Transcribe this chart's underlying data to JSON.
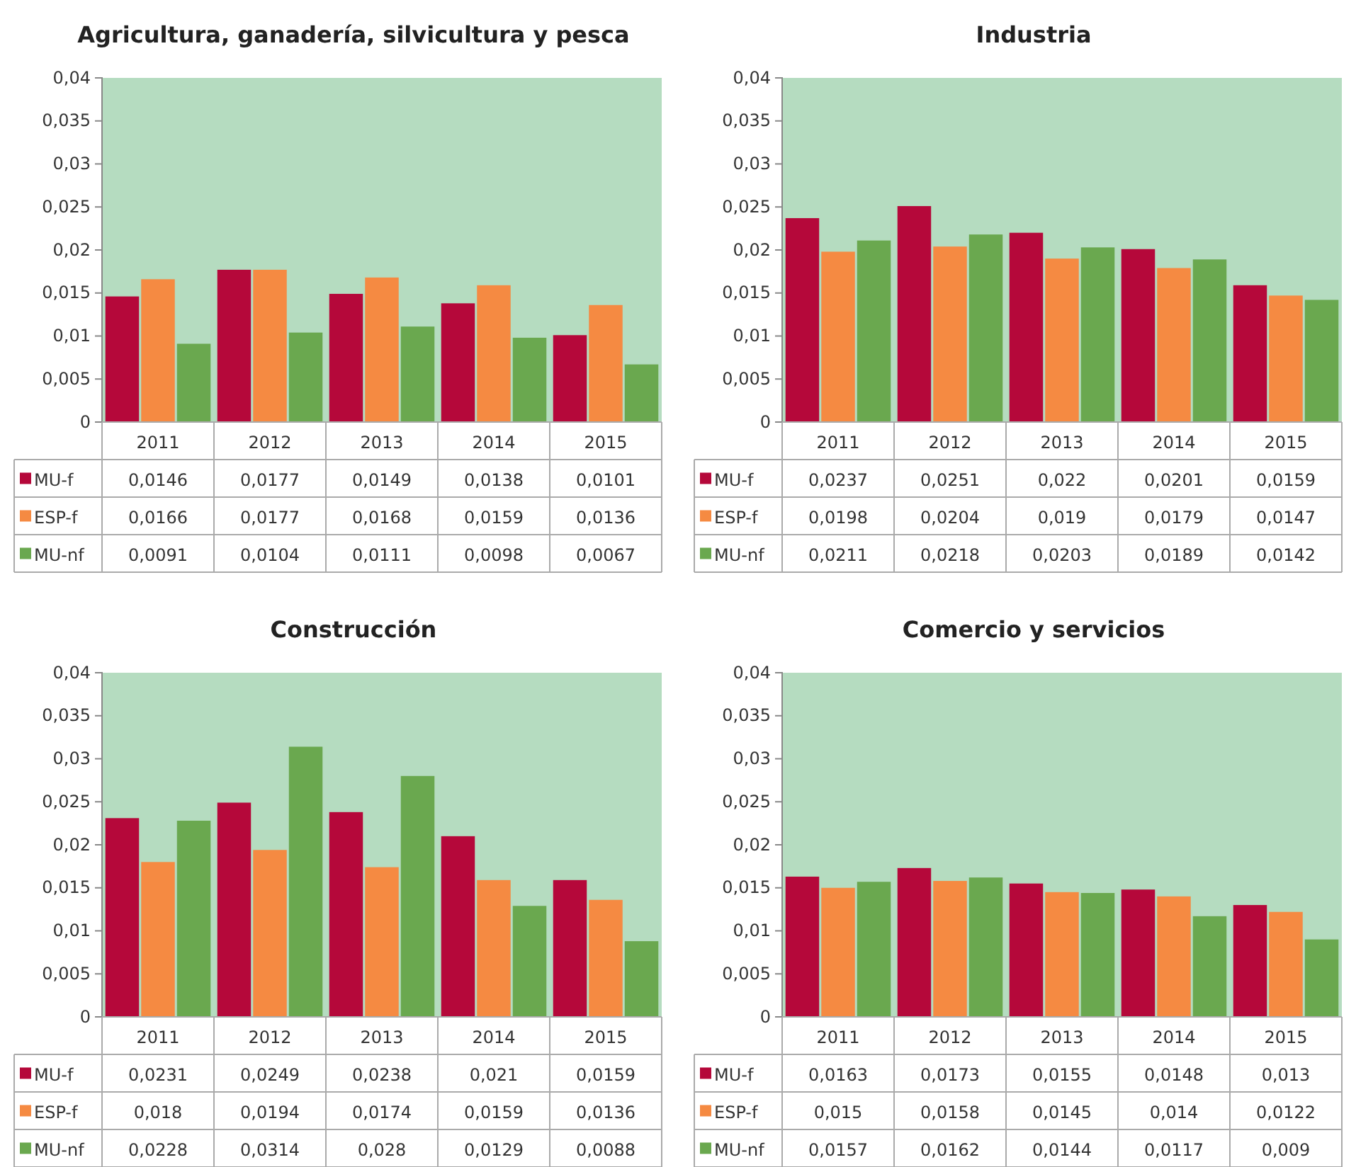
{
  "chart_data": [
    {
      "type": "bar",
      "title": "Agricultura, ganadería, silvicultura y pesca",
      "categories": [
        "2011",
        "2012",
        "2013",
        "2014",
        "2015"
      ],
      "ylim": [
        0,
        0.04
      ],
      "yticks": [
        {
          "value": 0,
          "label": "0"
        },
        {
          "value": 0.005,
          "label": "0,005"
        },
        {
          "value": 0.01,
          "label": "0,01"
        },
        {
          "value": 0.015,
          "label": "0,015"
        },
        {
          "value": 0.02,
          "label": "0,02"
        },
        {
          "value": 0.025,
          "label": "0,025"
        },
        {
          "value": 0.03,
          "label": "0,03"
        },
        {
          "value": 0.035,
          "label": "0,035"
        },
        {
          "value": 0.04,
          "label": "0,04"
        }
      ],
      "legend": "bottom",
      "series": [
        {
          "name": "MU-f",
          "color": "#b5083a",
          "values": [
            0.0146,
            0.0177,
            0.0149,
            0.0138,
            0.0101
          ],
          "value_labels": [
            "0,0146",
            "0,0177",
            "0,0149",
            "0,0138",
            "0,0101"
          ]
        },
        {
          "name": "ESP-f",
          "color": "#f58a42",
          "values": [
            0.0166,
            0.0177,
            0.0168,
            0.0159,
            0.0136
          ],
          "value_labels": [
            "0,0166",
            "0,0177",
            "0,0168",
            "0,0159",
            "0,0136"
          ]
        },
        {
          "name": "MU-nf",
          "color": "#6aa84f",
          "values": [
            0.0091,
            0.0104,
            0.0111,
            0.0098,
            0.0067
          ],
          "value_labels": [
            "0,0091",
            "0,0104",
            "0,0111",
            "0,0098",
            "0,0067"
          ]
        }
      ]
    },
    {
      "type": "bar",
      "title": "Industria",
      "categories": [
        "2011",
        "2012",
        "2013",
        "2014",
        "2015"
      ],
      "ylim": [
        0,
        0.04
      ],
      "yticks": [
        {
          "value": 0,
          "label": "0"
        },
        {
          "value": 0.005,
          "label": "0,005"
        },
        {
          "value": 0.01,
          "label": "0,01"
        },
        {
          "value": 0.015,
          "label": "0,015"
        },
        {
          "value": 0.02,
          "label": "0,02"
        },
        {
          "value": 0.025,
          "label": "0,025"
        },
        {
          "value": 0.03,
          "label": "0,03"
        },
        {
          "value": 0.035,
          "label": "0,035"
        },
        {
          "value": 0.04,
          "label": "0,04"
        }
      ],
      "legend": "bottom",
      "series": [
        {
          "name": "MU-f",
          "color": "#b5083a",
          "values": [
            0.0237,
            0.0251,
            0.022,
            0.0201,
            0.0159
          ],
          "value_labels": [
            "0,0237",
            "0,0251",
            "0,022",
            "0,0201",
            "0,0159"
          ]
        },
        {
          "name": "ESP-f",
          "color": "#f58a42",
          "values": [
            0.0198,
            0.0204,
            0.019,
            0.0179,
            0.0147
          ],
          "value_labels": [
            "0,0198",
            "0,0204",
            "0,019",
            "0,0179",
            "0,0147"
          ]
        },
        {
          "name": "MU-nf",
          "color": "#6aa84f",
          "values": [
            0.0211,
            0.0218,
            0.0203,
            0.0189,
            0.0142
          ],
          "value_labels": [
            "0,0211",
            "0,0218",
            "0,0203",
            "0,0189",
            "0,0142"
          ]
        }
      ]
    },
    {
      "type": "bar",
      "title": "Construcción",
      "categories": [
        "2011",
        "2012",
        "2013",
        "2014",
        "2015"
      ],
      "ylim": [
        0,
        0.04
      ],
      "yticks": [
        {
          "value": 0,
          "label": "0"
        },
        {
          "value": 0.005,
          "label": "0,005"
        },
        {
          "value": 0.01,
          "label": "0,01"
        },
        {
          "value": 0.015,
          "label": "0,015"
        },
        {
          "value": 0.02,
          "label": "0,02"
        },
        {
          "value": 0.025,
          "label": "0,025"
        },
        {
          "value": 0.03,
          "label": "0,03"
        },
        {
          "value": 0.035,
          "label": "0,035"
        },
        {
          "value": 0.04,
          "label": "0,04"
        }
      ],
      "legend": "bottom",
      "series": [
        {
          "name": "MU-f",
          "color": "#b5083a",
          "values": [
            0.0231,
            0.0249,
            0.0238,
            0.021,
            0.0159
          ],
          "value_labels": [
            "0,0231",
            "0,0249",
            "0,0238",
            "0,021",
            "0,0159"
          ]
        },
        {
          "name": "ESP-f",
          "color": "#f58a42",
          "values": [
            0.018,
            0.0194,
            0.0174,
            0.0159,
            0.0136
          ],
          "value_labels": [
            "0,018",
            "0,0194",
            "0,0174",
            "0,0159",
            "0,0136"
          ]
        },
        {
          "name": "MU-nf",
          "color": "#6aa84f",
          "values": [
            0.0228,
            0.0314,
            0.028,
            0.0129,
            0.0088
          ],
          "value_labels": [
            "0,0228",
            "0,0314",
            "0,028",
            "0,0129",
            "0,0088"
          ]
        }
      ]
    },
    {
      "type": "bar",
      "title": "Comercio y servicios",
      "categories": [
        "2011",
        "2012",
        "2013",
        "2014",
        "2015"
      ],
      "ylim": [
        0,
        0.04
      ],
      "yticks": [
        {
          "value": 0,
          "label": "0"
        },
        {
          "value": 0.005,
          "label": "0,005"
        },
        {
          "value": 0.01,
          "label": "0,01"
        },
        {
          "value": 0.015,
          "label": "0,015"
        },
        {
          "value": 0.02,
          "label": "0,02"
        },
        {
          "value": 0.025,
          "label": "0,025"
        },
        {
          "value": 0.03,
          "label": "0,03"
        },
        {
          "value": 0.035,
          "label": "0,035"
        },
        {
          "value": 0.04,
          "label": "0,04"
        }
      ],
      "legend": "bottom",
      "series": [
        {
          "name": "MU-f",
          "color": "#b5083a",
          "values": [
            0.0163,
            0.0173,
            0.0155,
            0.0148,
            0.013
          ],
          "value_labels": [
            "0,0163",
            "0,0173",
            "0,0155",
            "0,0148",
            "0,013"
          ]
        },
        {
          "name": "ESP-f",
          "color": "#f58a42",
          "values": [
            0.015,
            0.0158,
            0.0145,
            0.014,
            0.0122
          ],
          "value_labels": [
            "0,015",
            "0,0158",
            "0,0145",
            "0,014",
            "0,0122"
          ]
        },
        {
          "name": "MU-nf",
          "color": "#6aa84f",
          "values": [
            0.0157,
            0.0162,
            0.0144,
            0.0117,
            0.009
          ],
          "value_labels": [
            "0,0157",
            "0,0162",
            "0,0144",
            "0,0117",
            "0,009"
          ]
        }
      ]
    }
  ]
}
